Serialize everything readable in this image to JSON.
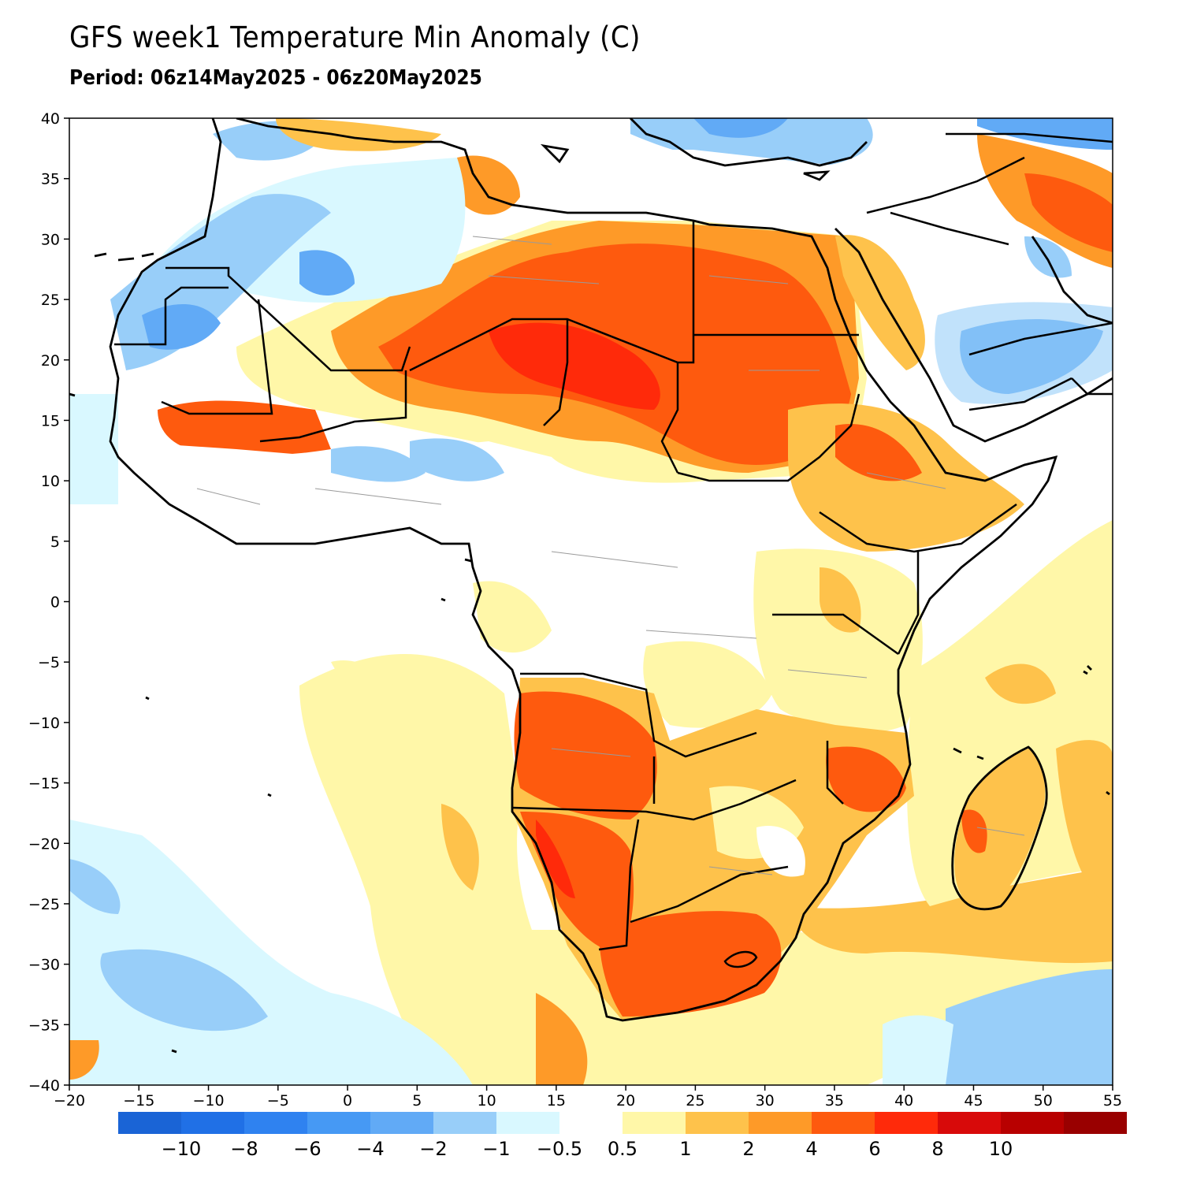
{
  "title": "GFS week1 Temperature Min Anomaly (C)",
  "subtitle": "Period: 06z14May2025 - 06z20May2025",
  "map": {
    "lon_range": [
      -20,
      55
    ],
    "lat_range": [
      -40,
      40
    ],
    "lon_ticks": [
      "−20",
      "−15",
      "−10",
      "−5",
      "0",
      "5",
      "10",
      "15",
      "20",
      "25",
      "30",
      "35",
      "40",
      "45",
      "50",
      "55"
    ],
    "lat_ticks": [
      "40",
      "35",
      "30",
      "25",
      "20",
      "15",
      "10",
      "5",
      "0",
      "−5",
      "−10",
      "−15",
      "−20",
      "−25",
      "−30",
      "−35",
      "−40"
    ],
    "layers": [
      "temperature-anomaly-shading",
      "country-borders",
      "coastlines"
    ]
  },
  "colorbar": {
    "colors": [
      "#1a64d6",
      "#2070e6",
      "#2f82f0",
      "#4699f4",
      "#61aaf6",
      "#98cef9",
      "#d9f8ff",
      "#ffffff",
      "#fff7a8",
      "#fec24b",
      "#fe9a28",
      "#fe5a0e",
      "#ff2a0a",
      "#d80a0a",
      "#b80000",
      "#990000"
    ],
    "labels": [
      "−10",
      "−8",
      "−6",
      "−4",
      "−2",
      "−1",
      "−0.5",
      "0.5",
      "1",
      "2",
      "4",
      "6",
      "8",
      "10"
    ]
  }
}
